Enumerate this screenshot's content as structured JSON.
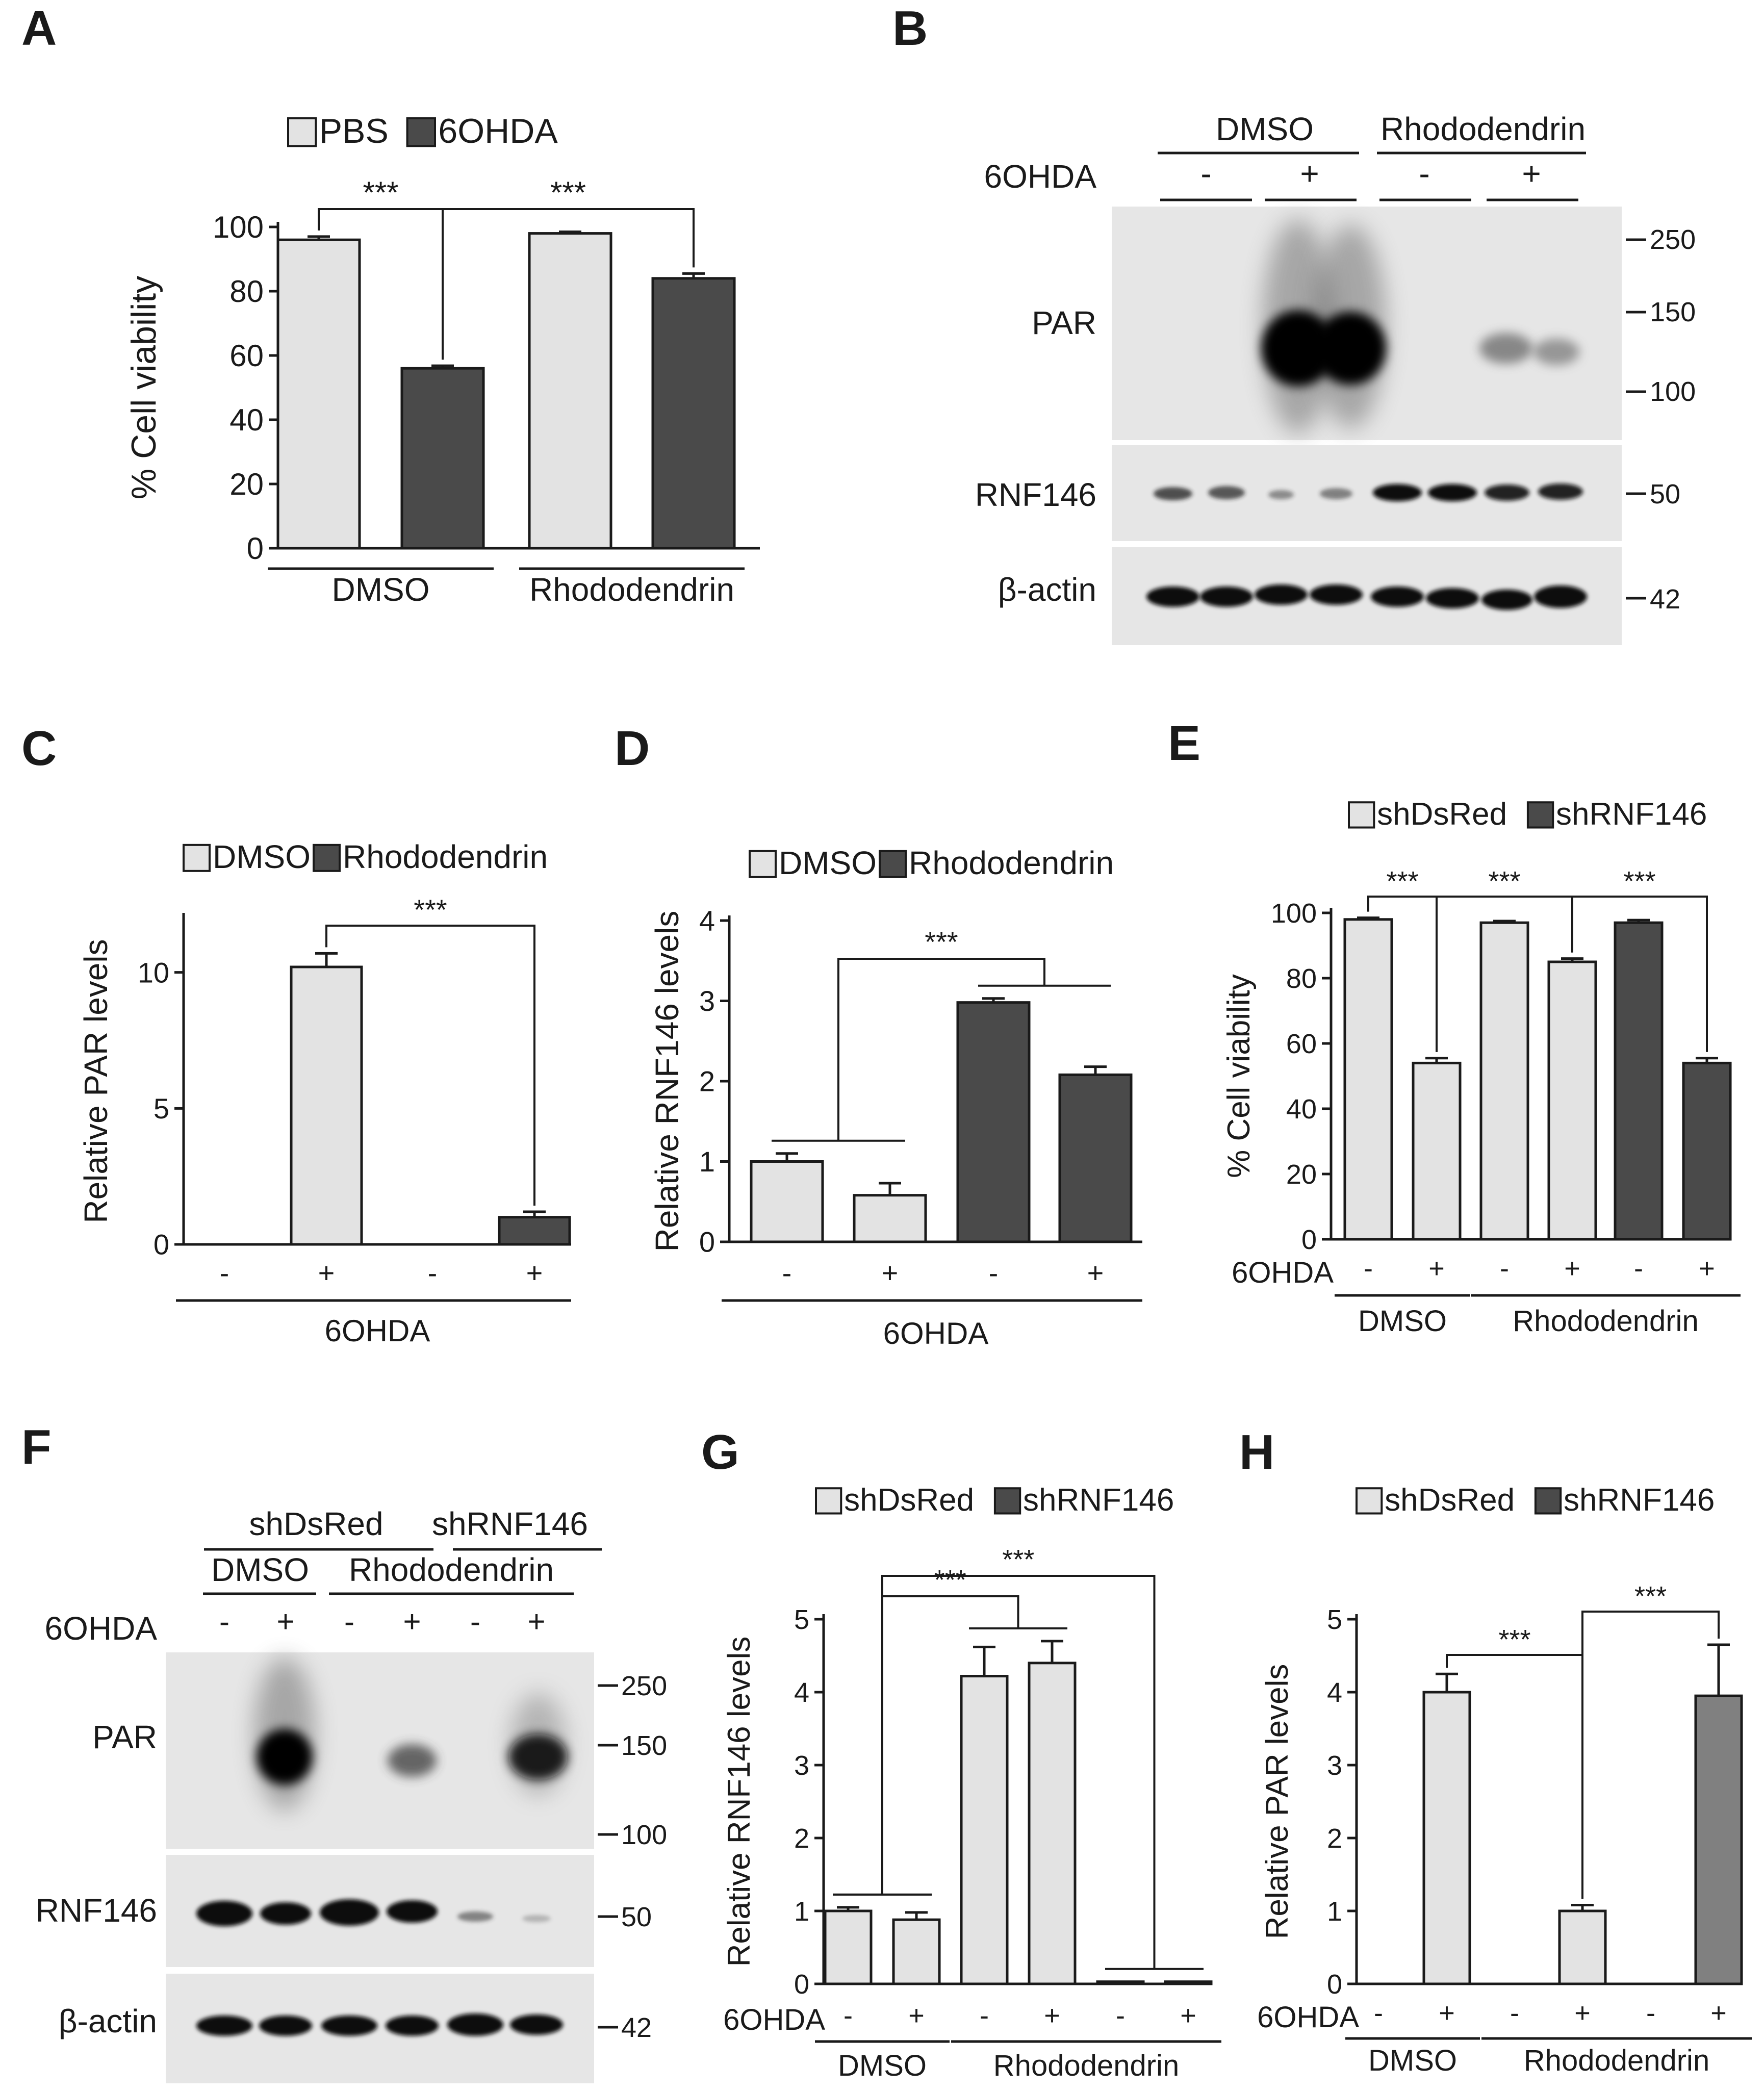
{
  "figure": {
    "panels": {
      "A": "A",
      "B": "B",
      "C": "C",
      "D": "D",
      "E": "E",
      "F": "F",
      "G": "G",
      "H": "H"
    }
  },
  "colors": {
    "light_bar": "#e3e3e3",
    "dark_bar": "#4a4a4a",
    "medium_bar": "#808080",
    "axis": "#1a1a1a",
    "blot_bg": "#e6e6e6",
    "band": "#0b0b0b"
  },
  "chart_data": [
    {
      "id": "A",
      "type": "bar",
      "title": "",
      "ylabel": "% Cell viability",
      "xlabel": "",
      "ylim": [
        0,
        100
      ],
      "yticks": [
        0,
        20,
        40,
        60,
        80,
        100
      ],
      "legend": [
        {
          "name": "PBS",
          "color": "light"
        },
        {
          "name": "6OHDA",
          "color": "dark"
        }
      ],
      "legend_position": "top",
      "bars": [
        {
          "group": "DMSO",
          "series": "PBS",
          "value": 96,
          "error": 1,
          "color": "light"
        },
        {
          "group": "DMSO",
          "series": "6OHDA",
          "value": 56,
          "error": 0.8,
          "color": "dark"
        },
        {
          "group": "Rhododendrin",
          "series": "PBS",
          "value": 98,
          "error": 0.5,
          "color": "light"
        },
        {
          "group": "Rhododendrin",
          "series": "6OHDA",
          "value": 84,
          "error": 1.5,
          "color": "dark"
        }
      ],
      "tick_row_label": "",
      "tick_labels": [],
      "groups": [
        {
          "label": "DMSO",
          "bars": [
            0,
            1
          ]
        },
        {
          "label": "Rhododendrin",
          "bars": [
            2,
            3
          ]
        }
      ],
      "significance": [
        {
          "from": 0,
          "to": 1,
          "label": "***"
        },
        {
          "from": 1,
          "to": 3,
          "label": "***"
        }
      ]
    },
    {
      "id": "C",
      "type": "bar",
      "title": "",
      "ylabel": "Relative PAR levels",
      "xlabel": "6OHDA",
      "ylim": [
        0,
        12
      ],
      "yticks": [
        0,
        5,
        10
      ],
      "legend": [
        {
          "name": "DMSO",
          "color": "light"
        },
        {
          "name": "Rhododendrin",
          "color": "dark"
        }
      ],
      "legend_position": "top",
      "bars": [
        {
          "group": "DMSO",
          "series": "-",
          "value": 0,
          "error": 0,
          "color": "light"
        },
        {
          "group": "DMSO",
          "series": "+",
          "value": 10.2,
          "error": 0.5,
          "color": "light"
        },
        {
          "group": "Rhododendrin",
          "series": "-",
          "value": 0,
          "error": 0,
          "color": "dark"
        },
        {
          "group": "Rhododendrin",
          "series": "+",
          "value": 1,
          "error": 0.2,
          "color": "dark"
        }
      ],
      "tick_row_label": "",
      "tick_labels": [
        "-",
        "+",
        "-",
        "+"
      ],
      "groups": [],
      "significance": [
        {
          "from": 1,
          "to": 3,
          "label": "***"
        }
      ]
    },
    {
      "id": "D",
      "type": "bar",
      "title": "",
      "ylabel": "Relative RNF146 levels",
      "xlabel": "6OHDA",
      "ylim": [
        0,
        4
      ],
      "yticks": [
        0,
        1,
        2,
        3,
        4
      ],
      "legend": [
        {
          "name": "DMSO",
          "color": "light"
        },
        {
          "name": "Rhododendrin",
          "color": "dark"
        }
      ],
      "legend_position": "top",
      "bars": [
        {
          "group": "DMSO",
          "series": "-",
          "value": 1,
          "error": 0.1,
          "color": "light"
        },
        {
          "group": "DMSO",
          "series": "+",
          "value": 0.58,
          "error": 0.15,
          "color": "light"
        },
        {
          "group": "Rhododendrin",
          "series": "-",
          "value": 2.98,
          "error": 0.05,
          "color": "dark"
        },
        {
          "group": "Rhododendrin",
          "series": "+",
          "value": 2.08,
          "error": 0.1,
          "color": "dark"
        }
      ],
      "tick_row_label": "",
      "tick_labels": [
        "-",
        "+",
        "-",
        "+"
      ],
      "groups": [],
      "significance": [
        {
          "pairs": [
            [
              0,
              1
            ],
            [
              2,
              3
            ]
          ],
          "label": "***"
        }
      ]
    },
    {
      "id": "E",
      "type": "bar",
      "title": "",
      "ylabel": "% Cell viability",
      "xlabel": "",
      "ylim": [
        0,
        100
      ],
      "yticks": [
        0,
        20,
        40,
        60,
        80,
        100
      ],
      "legend": [
        {
          "name": "shDsRed",
          "color": "light"
        },
        {
          "name": "shRNF146",
          "color": "dark"
        }
      ],
      "legend_position": "top",
      "bars": [
        {
          "group": "DMSO",
          "series": "-",
          "value": 98,
          "error": 0.5,
          "color": "light"
        },
        {
          "group": "DMSO",
          "series": "+",
          "value": 54,
          "error": 1.5,
          "color": "light"
        },
        {
          "group": "Rhododendrin",
          "series": "-",
          "value": 97,
          "error": 0.5,
          "color": "light"
        },
        {
          "group": "Rhododendrin",
          "series": "+",
          "value": 85,
          "error": 1,
          "color": "light"
        },
        {
          "group": "Rhododendrin",
          "series": "-",
          "value": 97,
          "error": 0.8,
          "color": "dark"
        },
        {
          "group": "Rhododendrin",
          "series": "+",
          "value": 54,
          "error": 1.5,
          "color": "dark"
        }
      ],
      "tick_row_label": "6OHDA",
      "tick_labels": [
        "-",
        "+",
        "-",
        "+",
        "-",
        "+"
      ],
      "groups": [
        {
          "label": "DMSO",
          "bars": [
            0,
            1
          ]
        },
        {
          "label": "Rhododendrin",
          "bars": [
            2,
            5
          ]
        }
      ],
      "significance": [
        {
          "from": 0,
          "to": 1,
          "label": "***"
        },
        {
          "from": 1,
          "to": 3,
          "label": "***"
        },
        {
          "from": 3,
          "to": 5,
          "label": "***"
        }
      ]
    },
    {
      "id": "G",
      "type": "bar",
      "title": "",
      "ylabel": "Relative RNF146 levels",
      "xlabel": "",
      "ylim": [
        0,
        5
      ],
      "yticks": [
        0,
        1,
        2,
        3,
        4,
        5
      ],
      "legend": [
        {
          "name": "shDsRed",
          "color": "light"
        },
        {
          "name": "shRNF146",
          "color": "dark"
        }
      ],
      "legend_position": "top",
      "bars": [
        {
          "group": "DMSO",
          "series": "-",
          "value": 1,
          "error": 0.05,
          "color": "light"
        },
        {
          "group": "DMSO",
          "series": "+",
          "value": 0.88,
          "error": 0.1,
          "color": "light"
        },
        {
          "group": "Rhododendrin",
          "series": "-",
          "value": 4.22,
          "error": 0.4,
          "color": "light"
        },
        {
          "group": "Rhododendrin",
          "series": "+",
          "value": 4.4,
          "error": 0.3,
          "color": "light"
        },
        {
          "group": "Rhododendrin",
          "series": "-",
          "value": 0.03,
          "error": 0,
          "color": "light"
        },
        {
          "group": "Rhododendrin",
          "series": "+",
          "value": 0.03,
          "error": 0,
          "color": "light"
        }
      ],
      "tick_row_label": "6OHDA",
      "tick_labels": [
        "-",
        "+",
        "-",
        "+",
        "-",
        "+"
      ],
      "groups": [
        {
          "label": "DMSO",
          "bars": [
            0,
            1
          ]
        },
        {
          "label": "Rhododendrin",
          "bars": [
            2,
            5
          ]
        }
      ],
      "significance": [
        {
          "pairs": [
            [
              0,
              1
            ],
            [
              2,
              3
            ]
          ],
          "label": "***",
          "level": 1
        },
        {
          "pairs": [
            [
              0,
              1
            ],
            [
              4,
              5
            ]
          ],
          "label": "***",
          "level": 2
        }
      ]
    },
    {
      "id": "H",
      "type": "bar",
      "title": "",
      "ylabel": "Relative PAR levels",
      "xlabel": "",
      "ylim": [
        0,
        5
      ],
      "yticks": [
        0,
        1,
        2,
        3,
        4,
        5
      ],
      "legend": [
        {
          "name": "shDsRed",
          "color": "light"
        },
        {
          "name": "shRNF146",
          "color": "dark"
        }
      ],
      "legend_position": "top",
      "bars": [
        {
          "group": "DMSO",
          "series": "-",
          "value": 0,
          "error": 0,
          "color": "light"
        },
        {
          "group": "DMSO",
          "series": "+",
          "value": 4,
          "error": 0.25,
          "color": "light"
        },
        {
          "group": "Rhododendrin",
          "series": "-",
          "value": 0,
          "error": 0,
          "color": "light"
        },
        {
          "group": "Rhododendrin",
          "series": "+",
          "value": 1,
          "error": 0.08,
          "color": "light"
        },
        {
          "group": "Rhododendrin",
          "series": "-",
          "value": 0,
          "error": 0,
          "color": "medium"
        },
        {
          "group": "Rhododendrin",
          "series": "+",
          "value": 3.95,
          "error": 0.7,
          "color": "medium"
        }
      ],
      "tick_row_label": "6OHDA",
      "tick_labels": [
        "-",
        "+",
        "-",
        "+",
        "-",
        "+"
      ],
      "groups": [
        {
          "label": "DMSO",
          "bars": [
            0,
            1
          ]
        },
        {
          "label": "Rhododendrin",
          "bars": [
            2,
            5
          ]
        }
      ],
      "significance": [
        {
          "from": 1,
          "to": 3,
          "label": "***"
        },
        {
          "from": 3,
          "to": 5,
          "label": "***"
        }
      ]
    }
  ],
  "blot_B": {
    "groups": [
      "DMSO",
      "Rhododendrin"
    ],
    "treatment_label": "6OHDA",
    "treatment_signs": [
      "-",
      "+",
      "-",
      "+"
    ],
    "rows": [
      {
        "label": "PAR",
        "markers": [
          "250",
          "150",
          "100"
        ]
      },
      {
        "label": "RNF146",
        "markers": [
          "50"
        ]
      },
      {
        "label": "β-actin",
        "markers": [
          "42"
        ]
      }
    ]
  },
  "blot_F": {
    "top_groups": [
      "shDsRed",
      "shRNF146"
    ],
    "drug_groups": [
      "DMSO",
      "Rhododendrin"
    ],
    "treatment_label": "6OHDA",
    "treatment_signs": [
      "-",
      "+",
      "-",
      "+",
      "-",
      "+"
    ],
    "rows": [
      {
        "label": "PAR",
        "markers": [
          "250",
          "150",
          "100"
        ]
      },
      {
        "label": "RNF146",
        "markers": [
          "50"
        ]
      },
      {
        "label": "β-actin",
        "markers": [
          "42"
        ]
      }
    ]
  }
}
